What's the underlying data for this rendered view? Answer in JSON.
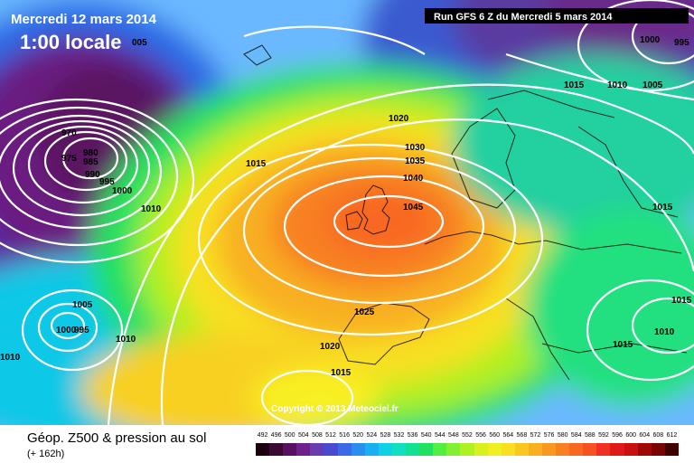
{
  "header": {
    "date_line": "Mercredi 12 mars 2014",
    "time_line": "1:00 locale",
    "run_info": "Run GFS 6 Z du Mercredi 5 mars 2014"
  },
  "copyright": "Copyright © 2013 Meteociel.fr",
  "footer": {
    "title": "Géop. Z500 & pression au sol",
    "subtitle": "(+ 162h)"
  },
  "isobar_labels": [
    {
      "text": "005"
    },
    {
      "text": "1000"
    },
    {
      "text": "995"
    },
    {
      "text": "1015"
    },
    {
      "text": "1010"
    },
    {
      "text": "1005"
    },
    {
      "text": "970"
    },
    {
      "text": "975"
    },
    {
      "text": "980"
    },
    {
      "text": "985"
    },
    {
      "text": "990"
    },
    {
      "text": "995"
    },
    {
      "text": "1000"
    },
    {
      "text": "1010"
    },
    {
      "text": "1015"
    },
    {
      "text": "1020"
    },
    {
      "text": "1030"
    },
    {
      "text": "1035"
    },
    {
      "text": "1040"
    },
    {
      "text": "1045"
    },
    {
      "text": "1015"
    },
    {
      "text": "1005"
    },
    {
      "text": "1000"
    },
    {
      "text": "995"
    },
    {
      "text": "1010"
    },
    {
      "text": "1010"
    },
    {
      "text": "1025"
    },
    {
      "text": "1020"
    },
    {
      "text": "1015"
    },
    {
      "text": "1015"
    },
    {
      "text": "1010"
    },
    {
      "text": "1015"
    }
  ],
  "legend": {
    "values": [
      "492",
      "496",
      "500",
      "504",
      "508",
      "512",
      "516",
      "520",
      "524",
      "528",
      "532",
      "536",
      "540",
      "544",
      "548",
      "552",
      "556",
      "560",
      "564",
      "568",
      "572",
      "576",
      "580",
      "584",
      "588",
      "592",
      "596",
      "600",
      "604",
      "608",
      "612"
    ],
    "colors": [
      "#1a0010",
      "#3a0a35",
      "#5a1060",
      "#70208a",
      "#6a3cb0",
      "#4a4ad0",
      "#3a6ae6",
      "#2a8ef0",
      "#18b0f0",
      "#10d0e6",
      "#10e0c0",
      "#10e090",
      "#20e060",
      "#50f040",
      "#80f030",
      "#b0f020",
      "#d8f020",
      "#f0f020",
      "#f8e020",
      "#f8c820",
      "#f8b020",
      "#f89820",
      "#f88020",
      "#f86820",
      "#f85020",
      "#f03020",
      "#e01818",
      "#c81010",
      "#a00808",
      "#780404",
      "#400000"
    ]
  },
  "colors": {
    "label_text": "#000000",
    "header_text": "#ffffff",
    "isobar": "#ffffff"
  }
}
